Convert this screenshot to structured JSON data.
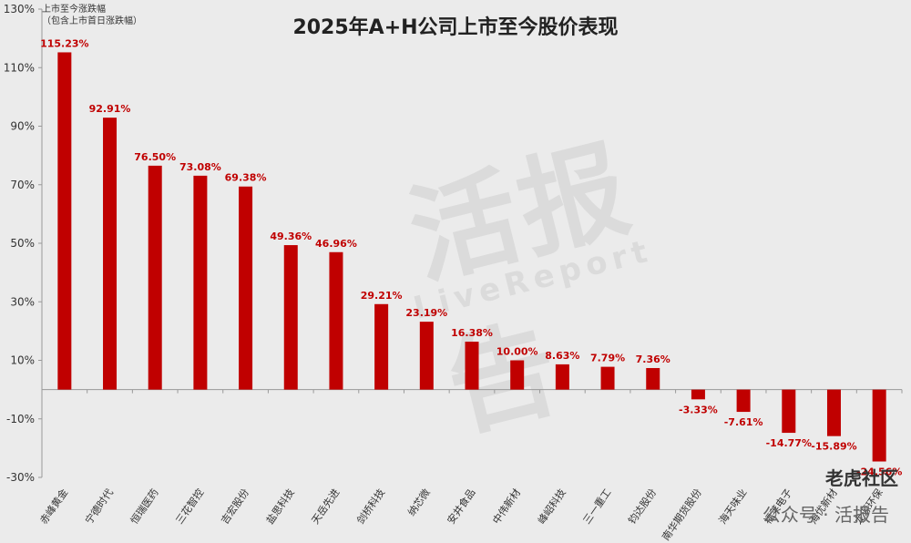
{
  "chart_data": {
    "type": "bar",
    "title": "2025年A+H公司上市至今股价表现",
    "ylabel_lines": [
      "上市至今涨跌幅",
      "（包含上市首日涨跌幅）"
    ],
    "ylim": [
      -30,
      130
    ],
    "yticks": [
      -30,
      -10,
      10,
      30,
      50,
      70,
      90,
      110,
      130
    ],
    "ytick_labels": [
      "-30%",
      "-10%",
      "10%",
      "30%",
      "50%",
      "70%",
      "90%",
      "110%",
      "130%"
    ],
    "categories": [
      "赤峰黄金",
      "宁德时代",
      "恒瑞医药",
      "三花智控",
      "吉宏股份",
      "盐思科技",
      "天岳先进",
      "剑桥科技",
      "纳芯微",
      "安井食品",
      "中伟新材",
      "峰岹科技",
      "三一重工",
      "钧达股份",
      "南华期货股份",
      "海天味业",
      "福莱电子",
      "海优新材",
      "龙源环保"
    ],
    "values": [
      115.23,
      92.91,
      76.5,
      73.08,
      69.38,
      49.36,
      46.96,
      29.21,
      23.19,
      16.38,
      10.0,
      8.63,
      7.79,
      7.36,
      -3.33,
      -7.61,
      -14.77,
      -15.89,
      -24.56
    ],
    "value_labels": [
      "115.23%",
      "92.91%",
      "76.50%",
      "73.08%",
      "69.38%",
      "49.36%",
      "46.96%",
      "29.21%",
      "23.19%",
      "16.38%",
      "10.00%",
      "8.63%",
      "7.79%",
      "7.36%",
      "-3.33%",
      "-7.61%",
      "-14.77%",
      "-15.89%",
      "-24.56%"
    ],
    "bar_color": "#c00000",
    "label_color": "#c00000",
    "grid": false
  },
  "watermark": {
    "main": "活报告",
    "sub": "LiveReport"
  },
  "badges": {
    "tiger": "老虎社区",
    "wechat": "公众号 · 活报告"
  }
}
